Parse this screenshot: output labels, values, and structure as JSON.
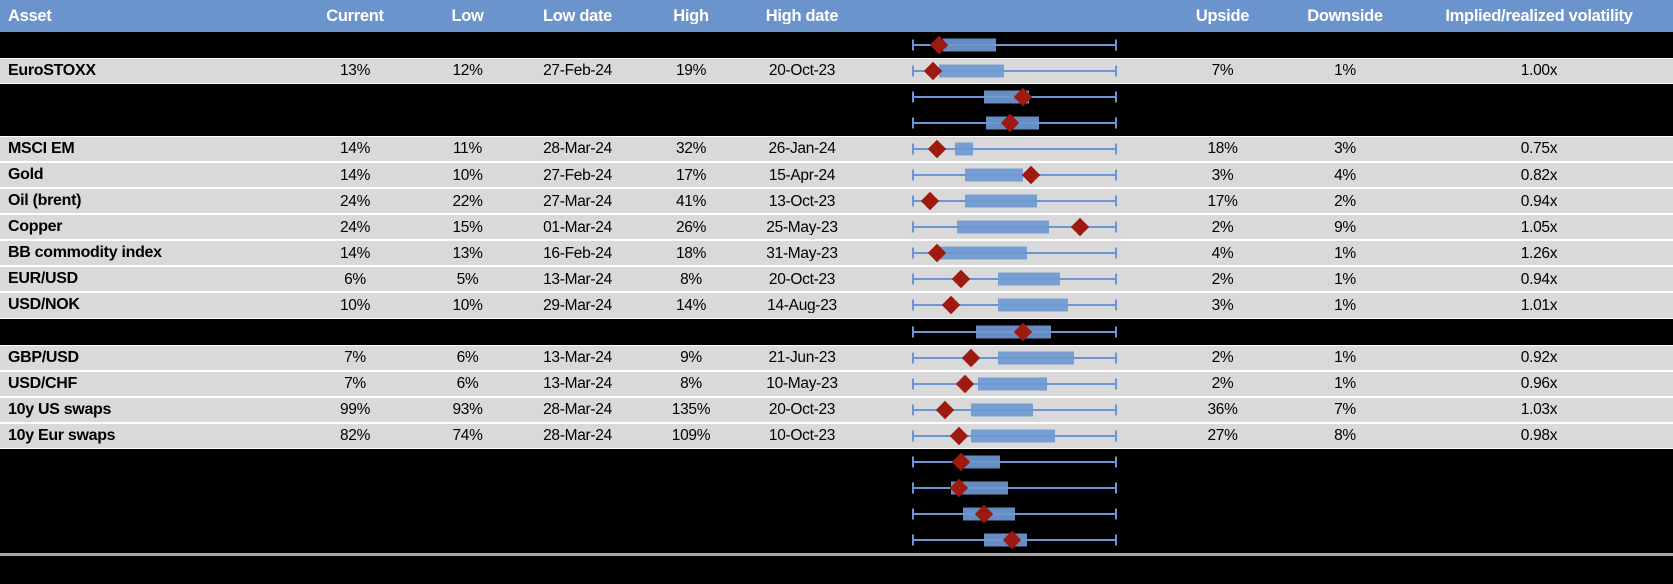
{
  "colors": {
    "header_bg": "#6B94CC",
    "header_text": "#FFFFFF",
    "data_row_bg": "#D9D9D9",
    "chart_row_bg": "#000000",
    "text": "#000000",
    "box_fill": "#6E99D3",
    "whisker": "#6B96D6",
    "marker": "#9E1A10",
    "row_separator": "#FFFFFF",
    "bottom_separator": "#A6A6A6"
  },
  "chart_data": {
    "type": "table",
    "subtype": "asset-volatility-table-with-boxplot-column",
    "columns": [
      "Asset",
      "Current",
      "Low",
      "Low date",
      "High",
      "High date",
      "Upside",
      "Downside",
      "Implied/realized volatility"
    ],
    "boxplot_note": "Each row contains a horizontal box-whisker strip; whiskers span the full normalized 0-1 range, 'box' gives the blue box start/end and 'marker' the dark-red diamond position (current value), all normalized 0-1.",
    "rows": [
      {
        "kind": "boxplot",
        "box": [
          0.15,
          0.41
        ],
        "marker": 0.13
      },
      {
        "kind": "data",
        "asset": "EuroSTOXX",
        "current": "13%",
        "low": "12%",
        "low_date": "27-Feb-24",
        "high": "19%",
        "high_date": "20-Oct-23",
        "upside": "7%",
        "downside": "1%",
        "implied_realized_vol": "1.00x",
        "box": [
          0.13,
          0.45
        ],
        "marker": 0.1
      },
      {
        "kind": "boxplot",
        "box": [
          0.35,
          0.57
        ],
        "marker": 0.54
      },
      {
        "kind": "boxplot",
        "box": [
          0.36,
          0.62
        ],
        "marker": 0.48
      },
      {
        "kind": "data",
        "asset": "MSCI EM",
        "current": "14%",
        "low": "11%",
        "low_date": "28-Mar-24",
        "high": "32%",
        "high_date": "26-Jan-24",
        "upside": "18%",
        "downside": "3%",
        "implied_realized_vol": "0.75x",
        "box": [
          0.21,
          0.3
        ],
        "marker": 0.12
      },
      {
        "kind": "data",
        "asset": "Gold",
        "current": "14%",
        "low": "10%",
        "low_date": "27-Feb-24",
        "high": "17%",
        "high_date": "15-Apr-24",
        "upside": "3%",
        "downside": "4%",
        "implied_realized_vol": "0.82x",
        "box": [
          0.26,
          0.54
        ],
        "marker": 0.58
      },
      {
        "kind": "data",
        "asset": "Oil (brent)",
        "current": "24%",
        "low": "22%",
        "low_date": "27-Mar-24",
        "high": "41%",
        "high_date": "13-Oct-23",
        "upside": "17%",
        "downside": "2%",
        "implied_realized_vol": "0.94x",
        "box": [
          0.26,
          0.61
        ],
        "marker": 0.09
      },
      {
        "kind": "data",
        "asset": "Copper",
        "current": "24%",
        "low": "15%",
        "low_date": "01-Mar-24",
        "high": "26%",
        "high_date": "25-May-23",
        "upside": "2%",
        "downside": "9%",
        "implied_realized_vol": "1.05x",
        "box": [
          0.22,
          0.67
        ],
        "marker": 0.82
      },
      {
        "kind": "data",
        "asset": "BB commodity index",
        "current": "14%",
        "low": "13%",
        "low_date": "16-Feb-24",
        "high": "18%",
        "high_date": "31-May-23",
        "upside": "4%",
        "downside": "1%",
        "implied_realized_vol": "1.26x",
        "box": [
          0.13,
          0.56
        ],
        "marker": 0.12
      },
      {
        "kind": "data",
        "asset": "EUR/USD",
        "current": "6%",
        "low": "5%",
        "low_date": "13-Mar-24",
        "high": "8%",
        "high_date": "20-Oct-23",
        "upside": "2%",
        "downside": "1%",
        "implied_realized_vol": "0.94x",
        "box": [
          0.42,
          0.72
        ],
        "marker": 0.24
      },
      {
        "kind": "data",
        "asset": "USD/NOK",
        "current": "10%",
        "low": "10%",
        "low_date": "29-Mar-24",
        "high": "14%",
        "high_date": "14-Aug-23",
        "upside": "3%",
        "downside": "1%",
        "implied_realized_vol": "1.01x",
        "box": [
          0.42,
          0.76
        ],
        "marker": 0.19
      },
      {
        "kind": "boxplot",
        "box": [
          0.31,
          0.68
        ],
        "marker": 0.54
      },
      {
        "kind": "data",
        "asset": "GBP/USD",
        "current": "7%",
        "low": "6%",
        "low_date": "13-Mar-24",
        "high": "9%",
        "high_date": "21-Jun-23",
        "upside": "2%",
        "downside": "1%",
        "implied_realized_vol": "0.92x",
        "box": [
          0.42,
          0.79
        ],
        "marker": 0.29
      },
      {
        "kind": "data",
        "asset": "USD/CHF",
        "current": "7%",
        "low": "6%",
        "low_date": "13-Mar-24",
        "high": "8%",
        "high_date": "10-May-23",
        "upside": "2%",
        "downside": "1%",
        "implied_realized_vol": "0.96x",
        "box": [
          0.32,
          0.66
        ],
        "marker": 0.26
      },
      {
        "kind": "data",
        "asset": "10y US swaps",
        "current": "99%",
        "low": "93%",
        "low_date": "28-Mar-24",
        "high": "135%",
        "high_date": "20-Oct-23",
        "upside": "36%",
        "downside": "7%",
        "implied_realized_vol": "1.03x",
        "box": [
          0.29,
          0.59
        ],
        "marker": 0.16
      },
      {
        "kind": "data",
        "asset": "10y Eur swaps",
        "current": "82%",
        "low": "74%",
        "low_date": "28-Mar-24",
        "high": "109%",
        "high_date": "10-Oct-23",
        "upside": "27%",
        "downside": "8%",
        "implied_realized_vol": "0.98x",
        "box": [
          0.29,
          0.7
        ],
        "marker": 0.23
      },
      {
        "kind": "boxplot",
        "box": [
          0.23,
          0.43
        ],
        "marker": 0.24
      },
      {
        "kind": "boxplot",
        "box": [
          0.19,
          0.47
        ],
        "marker": 0.23
      },
      {
        "kind": "boxplot",
        "box": [
          0.25,
          0.5
        ],
        "marker": 0.35
      },
      {
        "kind": "boxplot",
        "box": [
          0.35,
          0.56
        ],
        "marker": 0.49
      }
    ]
  }
}
